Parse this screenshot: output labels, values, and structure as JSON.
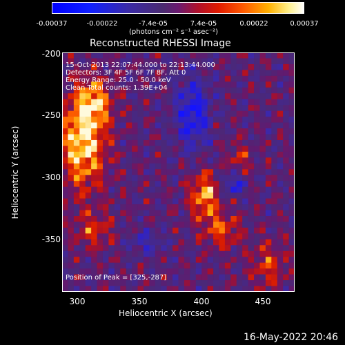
{
  "colorbar": {
    "ticks": [
      "-0.00037",
      "-0.00022",
      "-7.4e-05",
      "7.4e-05",
      "0.00022",
      "0.00037"
    ],
    "unit_label": "(photons cm⁻² s⁻¹ asec⁻²)"
  },
  "title": "Reconstructed RHESSI Image",
  "info": {
    "line1": "15-Oct-2013 22:07:44.000 to 22:13:44.000",
    "line2": "Detectors: 3F 4F 5F 6F 7F 8F, Att 0",
    "line3": "Energy Range: 25.0 - 50.0 keV",
    "line4": "Clean    Total counts: 1.39E+04",
    "peak": "Position of Peak = [325,-287]"
  },
  "axes": {
    "xlabel": "Heliocentric X (arcsec)",
    "ylabel": "Heliocentric Y (arcsec)",
    "xticks": [
      "300",
      "350",
      "400",
      "450"
    ],
    "yticks": [
      "-200",
      "-250",
      "-300",
      "-350"
    ]
  },
  "footer": {
    "timestamp": "16-May-2022 20:46"
  },
  "colors": {
    "background": "#000000",
    "text": "#ffffff"
  }
}
